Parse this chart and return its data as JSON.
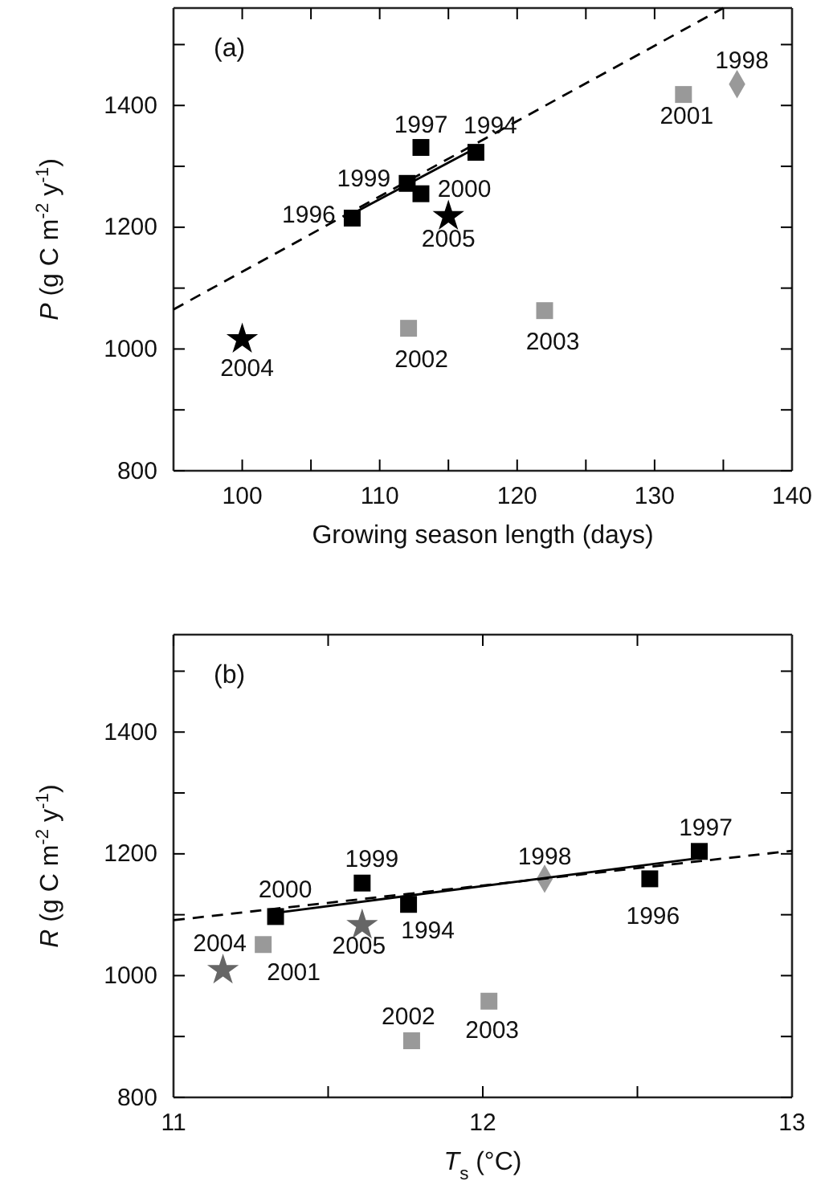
{
  "chart_data": [
    {
      "type": "scatter",
      "title": "(a)",
      "xlabel": "Growing season length (days)",
      "ylabel": "P (g C m$^{-2}$ y$^{-1}$)",
      "xlim": [
        95,
        140
      ],
      "xticks": [
        {
          "value": 100,
          "label": "100"
        },
        {
          "value": 105,
          "label": null
        },
        {
          "value": 110,
          "label": "110"
        },
        {
          "value": 115,
          "label": null
        },
        {
          "value": 120,
          "label": "120"
        },
        {
          "value": 125,
          "label": null
        },
        {
          "value": 130,
          "label": "130"
        },
        {
          "value": 135,
          "label": null
        },
        {
          "value": 140,
          "label": "140"
        }
      ],
      "ylim": [
        800,
        1560
      ],
      "yticks": [
        800,
        {
          "value": 900,
          "label": null
        },
        1000,
        {
          "value": 1100,
          "label": null
        },
        1200,
        {
          "value": 1300,
          "label": null
        },
        1400,
        {
          "value": 1500,
          "label": null
        }
      ],
      "grid": false,
      "series": [
        {
          "color": "#000000",
          "marker": "square",
          "x": [
            117,
            108,
            113,
            112,
            113
          ],
          "values": [
            1323,
            1215,
            1331,
            1272,
            1255
          ]
        },
        {
          "color": "#000000",
          "marker": "star",
          "x": [
            100,
            115
          ],
          "values": [
            1016,
            1218
          ]
        },
        {
          "color": "#999999",
          "marker": "square",
          "x": [
            132.1,
            112.1,
            122
          ],
          "values": [
            1418,
            1034,
            1063
          ]
        },
        {
          "color": "#999999",
          "marker": "diamond",
          "x": [
            136
          ],
          "values": [
            1435
          ]
        },
        {
          "type": "line",
          "color": "#000000",
          "line_style": "dashed",
          "x": [
            95,
            135
          ],
          "values": [
            1065,
            1560
          ]
        },
        {
          "type": "line",
          "color": "#000000",
          "line_style": "solid",
          "x": [
            108,
            117
          ],
          "values": [
            1222,
            1330
          ]
        }
      ],
      "annotations": [
        {
          "text": "1994",
          "x": 117,
          "y": 1323
        },
        {
          "text": "1996",
          "x": 108,
          "y": 1215
        },
        {
          "text": "1997",
          "x": 113,
          "y": 1331
        },
        {
          "text": "1998",
          "x": 136,
          "y": 1435
        },
        {
          "text": "1999",
          "x": 112,
          "y": 1272
        },
        {
          "text": "2000",
          "x": 113,
          "y": 1255
        },
        {
          "text": "2001",
          "x": 132.1,
          "y": 1418
        },
        {
          "text": "2002",
          "x": 112.1,
          "y": 1034
        },
        {
          "text": "2003",
          "x": 122,
          "y": 1063
        },
        {
          "text": "2004",
          "x": 100,
          "y": 1016
        },
        {
          "text": "2005",
          "x": 115,
          "y": 1218
        }
      ]
    },
    {
      "type": "scatter",
      "title": "(b)",
      "xlabel": "T$_{s}$ (°C)",
      "ylabel": "R (g C m$^{-2}$ y$^{-1}$)",
      "xlim": [
        11,
        13
      ],
      "xticks": [
        11,
        {
          "value": 11.5,
          "label": null
        },
        12,
        {
          "value": 12.5,
          "label": null
        },
        13
      ],
      "ylim": [
        800,
        1560
      ],
      "yticks": [
        800,
        {
          "value": 900,
          "label": null
        },
        1000,
        {
          "value": 1100,
          "label": null
        },
        1200,
        {
          "value": 1300,
          "label": null
        },
        1400,
        {
          "value": 1500,
          "label": null
        }
      ],
      "grid": false,
      "series": [
        {
          "color": "#000000",
          "marker": "square",
          "x": [
            11.76,
            12.54,
            12.7,
            11.61,
            11.33
          ],
          "values": [
            1117,
            1159,
            1204,
            1152,
            1097
          ]
        },
        {
          "color": "#666666",
          "marker": "star",
          "x": [
            11.16,
            11.61
          ],
          "values": [
            1009,
            1083
          ]
        },
        {
          "color": "#999999",
          "marker": "square",
          "x": [
            11.29,
            11.77,
            12.02
          ],
          "values": [
            1051,
            893,
            958
          ]
        },
        {
          "color": "#999999",
          "marker": "diamond",
          "x": [
            12.2
          ],
          "values": [
            1159
          ]
        },
        {
          "type": "line",
          "color": "#000000",
          "line_style": "dashed",
          "x": [
            11,
            13
          ],
          "values": [
            1091,
            1205
          ]
        },
        {
          "type": "line",
          "color": "#000000",
          "line_style": "solid",
          "x": [
            11.33,
            12.7
          ],
          "values": [
            1103,
            1193
          ]
        }
      ],
      "annotations": [
        {
          "text": "1994",
          "x": 11.76,
          "y": 1117
        },
        {
          "text": "1996",
          "x": 12.54,
          "y": 1159
        },
        {
          "text": "1997",
          "x": 12.7,
          "y": 1204
        },
        {
          "text": "1998",
          "x": 12.2,
          "y": 1159
        },
        {
          "text": "1999",
          "x": 11.61,
          "y": 1152
        },
        {
          "text": "2000",
          "x": 11.33,
          "y": 1097
        },
        {
          "text": "2001",
          "x": 11.29,
          "y": 1051
        },
        {
          "text": "2002",
          "x": 11.77,
          "y": 893
        },
        {
          "text": "2003",
          "x": 12.02,
          "y": 958
        },
        {
          "text": "2004",
          "x": 11.16,
          "y": 1009
        },
        {
          "text": "2005",
          "x": 11.61,
          "y": 1083
        }
      ]
    }
  ]
}
